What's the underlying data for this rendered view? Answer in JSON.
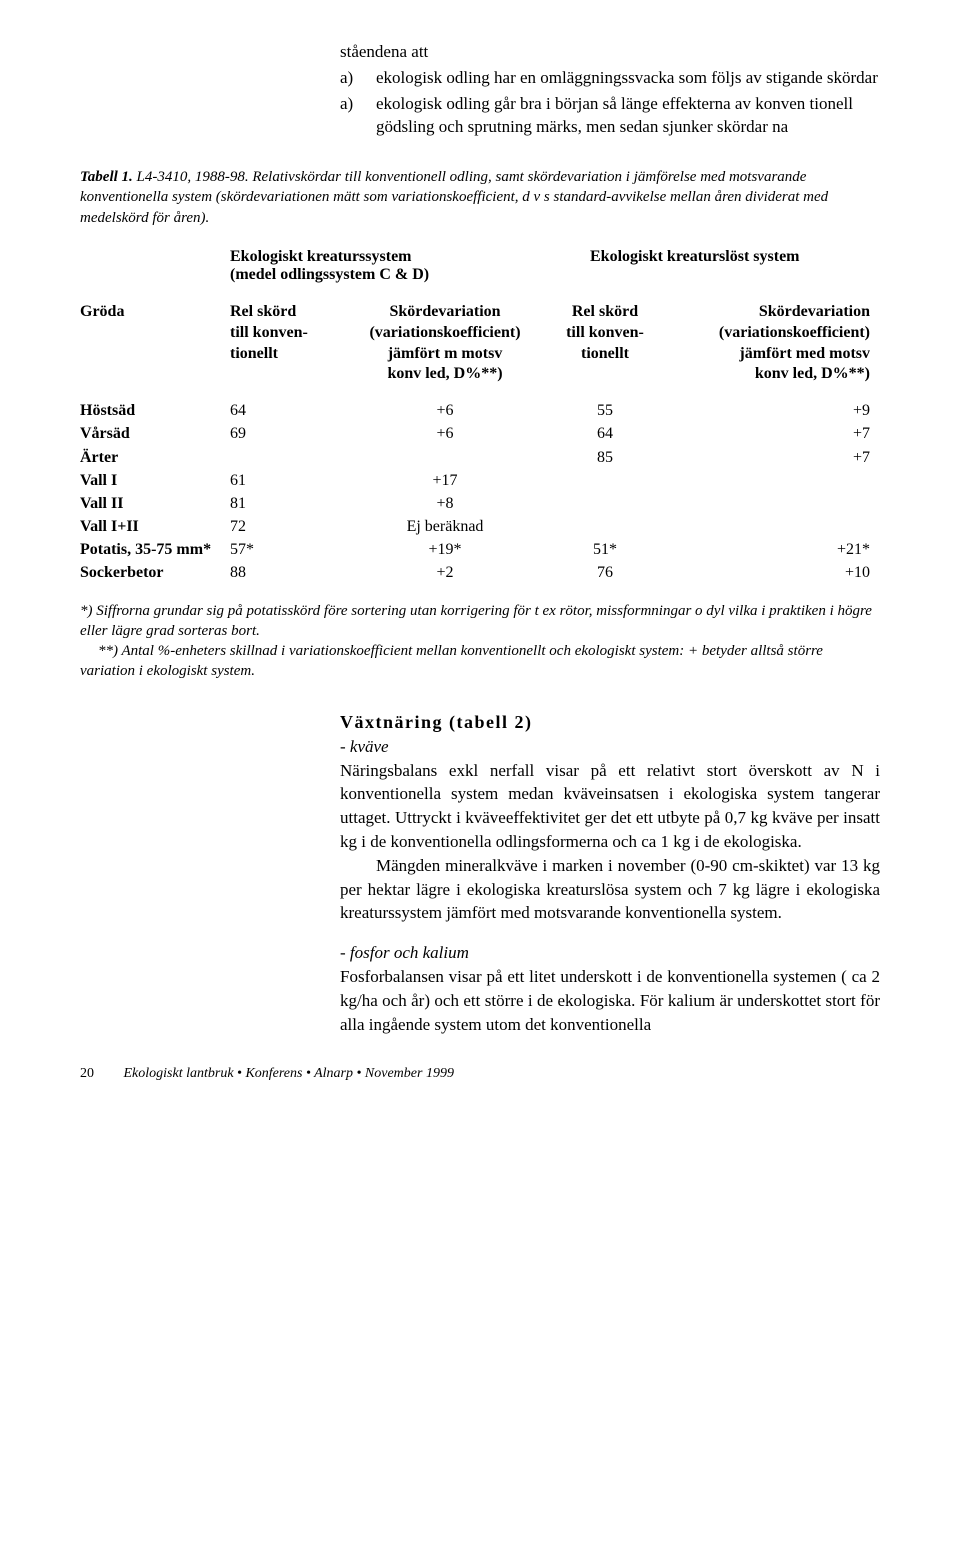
{
  "intro": {
    "line1": "ståendena att",
    "items": [
      {
        "marker": "a)",
        "text": "ekologisk odling har en omläggningssvacka som följs av stigande skördar"
      },
      {
        "marker": "a)",
        "text": "ekologisk odling går bra i början så länge effekterna av konven tionell gödsling och sprutning märks, men sedan sjunker skördar na"
      }
    ]
  },
  "tableCaption": {
    "lead": "Tabell 1.",
    "rest": " L4-3410, 1988-98. Relativskördar till konventionell odling, samt skördevariation i jämförelse med motsvarande konventionella system (skördevariationen mätt som variationskoefficient, d v s standard-avvikelse mellan åren dividerat med medelskörd för åren)."
  },
  "systems": {
    "left_line1": "Ekologiskt kreaturssystem",
    "left_line2": "(medel odlingssystem C & D)",
    "right": "Ekologiskt kreaturslöst system"
  },
  "headers": {
    "c1": "Gröda",
    "c2a": "Rel skörd",
    "c2b": "till konven-",
    "c2c": "tionellt",
    "c3a": "Skördevariation",
    "c3b": "(variationskoefficient)",
    "c3c": "jämfört m motsv",
    "c3d": "konv led, D%**)",
    "c4a": "Rel skörd",
    "c4b": "till konven-",
    "c4c": "tionellt",
    "c5a": "Skördevariation",
    "c5b": "(variationskoefficient)",
    "c5c": "jämfört med motsv",
    "c5d": "konv led, D%**)"
  },
  "rows": [
    {
      "name": "Höstsäd",
      "v2": "64",
      "v3": "+6",
      "v4": "55",
      "v5": "+9"
    },
    {
      "name": "Vårsäd",
      "v2": "69",
      "v3": "+6",
      "v4": "64",
      "v5": "+7"
    },
    {
      "name": "Ärter",
      "v2": "",
      "v3": "",
      "v4": "85",
      "v5": "+7"
    },
    {
      "name": "Vall I",
      "v2": "61",
      "v3": "+17",
      "v4": "",
      "v5": ""
    },
    {
      "name": "Vall II",
      "v2": "81",
      "v3": "+8",
      "v4": "",
      "v5": ""
    },
    {
      "name": "Vall I+II",
      "v2": "72",
      "v3": "Ej beräknad",
      "v4": "",
      "v5": ""
    },
    {
      "name": "Potatis, 35-75 mm*",
      "v2": "57*",
      "v3": "+19*",
      "v4": "51*",
      "v5": "+21*"
    },
    {
      "name": "Sockerbetor",
      "v2": "88",
      "v3": "+2",
      "v4": "76",
      "v5": "+10"
    }
  ],
  "footnotes": {
    "n1": "*) Siffrorna grundar sig på potatisskörd före sortering utan korrigering för t ex rötor, missformningar o dyl vilka i praktiken i högre eller lägre grad sorteras bort.",
    "n2": "**) Antal %-enheters skillnad i variationskoefficient mellan konventionellt och ekologiskt system: + betyder alltså större variation i ekologiskt system."
  },
  "section": {
    "heading": "Växtnäring (tabell 2)",
    "sub1": "- kväve",
    "p1": "Näringsbalans exkl nerfall visar på ett relativt stort överskott av N i konventionella system medan kväveinsatsen i ekologiska system tangerar uttaget. Uttryckt i kväveeffektivitet ger det ett utbyte på 0,7 kg kväve per insatt kg i de konventionella odlingsformerna och ca 1 kg i de ekologiska.",
    "p2": "Mängden mineralkväve i marken i november (0-90 cm-skiktet) var 13 kg per hektar lägre i ekologiska kreaturslösa system och 7 kg lägre i ekologiska kreaturssystem jämfört med motsvarande konventionella system.",
    "sub2": "- fosfor och kalium",
    "p3": "Fosforbalansen visar på ett litet underskott i de konventionella systemen ( ca 2 kg/ha och år) och ett större i de ekologiska. För kalium är underskottet stort för alla ingående system utom det konventionella"
  },
  "footer": {
    "pagenum": "20",
    "text": "Ekologiskt lantbruk  •  Konferens  •  Alnarp  •  November 1999"
  }
}
